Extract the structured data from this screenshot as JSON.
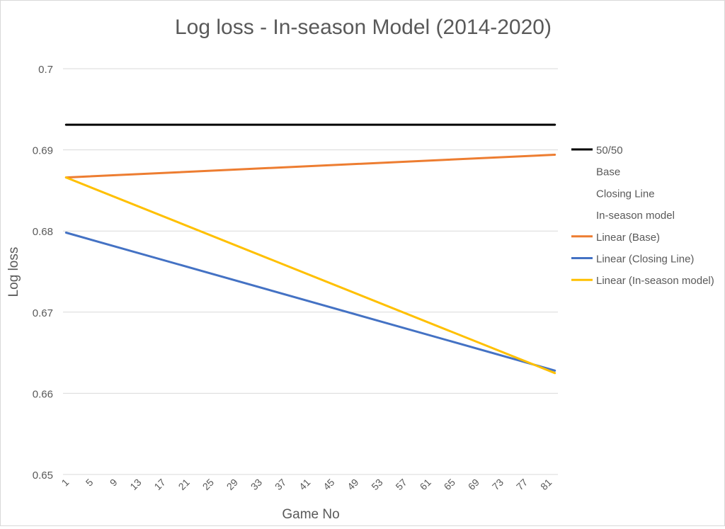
{
  "chart_data": {
    "type": "line",
    "title": "Log loss - In-season Model (2014-2020)",
    "xlabel": "Game No",
    "ylabel": "Log loss",
    "x_range": [
      1,
      82
    ],
    "xticks": [
      1,
      5,
      9,
      13,
      17,
      21,
      25,
      29,
      33,
      37,
      41,
      45,
      49,
      53,
      57,
      61,
      65,
      69,
      73,
      77,
      81
    ],
    "ylim": [
      0.65,
      0.7
    ],
    "yticks": [
      0.65,
      0.66,
      0.67,
      0.68,
      0.69,
      0.7
    ],
    "ytick_labels": [
      "0.65",
      "0.66",
      "0.67",
      "0.68",
      "0.69",
      "0.7"
    ],
    "grid": "horizontal",
    "legend_position": "right",
    "series": [
      {
        "name": "50/50",
        "color": "#000000",
        "visible": true,
        "x": [
          1,
          82
        ],
        "values": [
          0.6931,
          0.6931
        ]
      },
      {
        "name": "Base",
        "color": "#ffffff",
        "visible": false,
        "x": [],
        "values": []
      },
      {
        "name": "Closing Line",
        "color": "#ffffff",
        "visible": false,
        "x": [],
        "values": []
      },
      {
        "name": "In-season model",
        "color": "#ffffff",
        "visible": false,
        "x": [],
        "values": []
      },
      {
        "name": "Linear (Base)",
        "color": "#ed7d31",
        "visible": true,
        "x": [
          1,
          82
        ],
        "values": [
          0.6866,
          0.6894
        ]
      },
      {
        "name": "Linear (Closing Line)",
        "color": "#4472c4",
        "visible": true,
        "x": [
          1,
          82
        ],
        "values": [
          0.6798,
          0.6628
        ]
      },
      {
        "name": "Linear (In-season model)",
        "color": "#ffc000",
        "visible": true,
        "x": [
          1,
          82
        ],
        "values": [
          0.6866,
          0.6625
        ]
      }
    ]
  }
}
